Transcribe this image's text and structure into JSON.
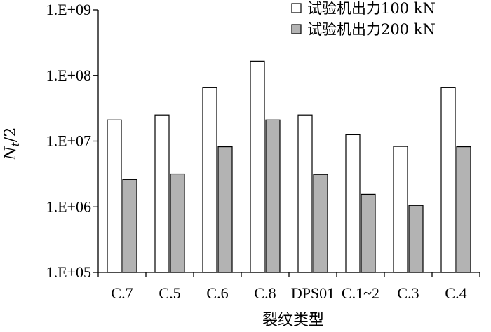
{
  "chart_data": {
    "type": "bar",
    "yscale": "log",
    "ylim": [
      100000,
      1000000000
    ],
    "ytick_labels": [
      "1.E+05",
      "1.E+06",
      "1.E+07",
      "1.E+08",
      "1.E+09"
    ],
    "ytick_values": [
      100000,
      1000000,
      10000000,
      100000000,
      1000000000
    ],
    "xlabel": "裂纹类型",
    "ylabel_main": "N",
    "ylabel_sub": "t",
    "ylabel_suffix": "/2",
    "categories": [
      "C.7",
      "C.5",
      "C.6",
      "C.8",
      "DPS01",
      "C.1~2",
      "C.3",
      "C.4"
    ],
    "series": [
      {
        "name": "试验机出力100 kN",
        "color": "#ffffff",
        "values": [
          21000000,
          25000000,
          66000000,
          165000000,
          25000000,
          12500000,
          8300000,
          66000000
        ]
      },
      {
        "name": "试验机出力200 kN",
        "color": "#b3b3b3",
        "values": [
          2600000,
          3150000,
          8200000,
          21000000,
          3100000,
          1550000,
          1050000,
          8200000
        ]
      }
    ],
    "legend_position": "top-right",
    "grid": false
  }
}
